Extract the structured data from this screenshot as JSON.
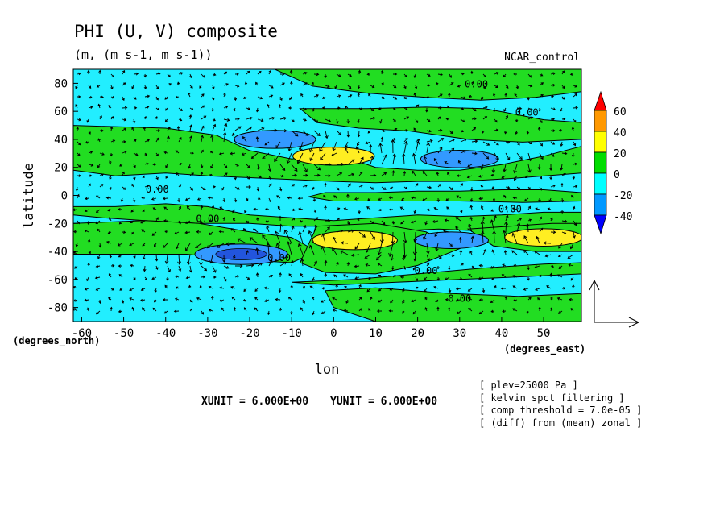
{
  "header": {
    "title": "PHI (U, V) composite",
    "units": "(m, (m s-1, m s-1))",
    "run_label": "NCAR_control"
  },
  "chart_data": {
    "type": "heatmap",
    "title": "PHI (U, V) composite",
    "subtitle": "(m, (m s-1, m s-1))",
    "xlabel": "lon",
    "ylabel": "latitude",
    "x_unit_label": "(degrees_east)",
    "y_unit_label": "(degrees_north)",
    "xlim": [
      -62,
      59
    ],
    "ylim": [
      -90,
      90
    ],
    "x_ticks": [
      -60,
      -50,
      -40,
      -30,
      -20,
      -10,
      0,
      10,
      20,
      30,
      40,
      50
    ],
    "y_ticks": [
      80,
      60,
      40,
      20,
      0,
      -20,
      -40,
      -60,
      -80
    ],
    "contour_levels": [
      -40,
      -20,
      0,
      20,
      40,
      60
    ],
    "colorbar": {
      "labels": [
        "60",
        "40",
        "20",
        "0",
        "-20",
        "-40"
      ],
      "colors": [
        "#ff0000",
        "#ff9900",
        "#ffff00",
        "#00dd00",
        "#00ffff",
        "#0099ff",
        "#0000ff"
      ]
    },
    "fill_colors": {
      "pos_0_20": "#22dd22",
      "neg_0_20": "#22eeff",
      "pos_20_40": "#ffee22",
      "neg_20_40": "#3399ff",
      "neg_40_60": "#2255dd"
    },
    "contour_labels": [
      {
        "lon": 34,
        "lat": 77,
        "text": "0.00"
      },
      {
        "lon": 46,
        "lat": 57,
        "text": "0.00"
      },
      {
        "lon": -42,
        "lat": 2,
        "text": "0.00"
      },
      {
        "lon": -30,
        "lat": -19,
        "text": "0.00"
      },
      {
        "lon": 42,
        "lat": -12,
        "text": "0.00"
      },
      {
        "lon": -13,
        "lat": -47,
        "text": "0.00"
      },
      {
        "lon": 22,
        "lat": -56,
        "text": "0.00"
      },
      {
        "lon": 30,
        "lat": -76,
        "text": "0.00"
      }
    ],
    "anomalies": [
      {
        "lon": -14,
        "lat": 40,
        "value": -26
      },
      {
        "lon": 0,
        "lat": 28,
        "value": 26
      },
      {
        "lon": 30,
        "lat": 26,
        "value": -24
      },
      {
        "lon": 5,
        "lat": -32,
        "value": 28
      },
      {
        "lon": -22,
        "lat": -42,
        "value": -32
      },
      {
        "lon": 28,
        "lat": -32,
        "value": -22
      },
      {
        "lon": 50,
        "lat": -30,
        "value": 24
      }
    ],
    "reference_vector": {
      "xunit": "XUNIT = 6.000E+00",
      "yunit": "YUNIT = 6.000E+00"
    }
  },
  "annotations": [
    "[ plev=25000 Pa ]",
    "[ kelvin spct filtering ]",
    "[ comp threshold = 7.0e-05 ]",
    "[ (diff) from (mean) zonal ]"
  ]
}
